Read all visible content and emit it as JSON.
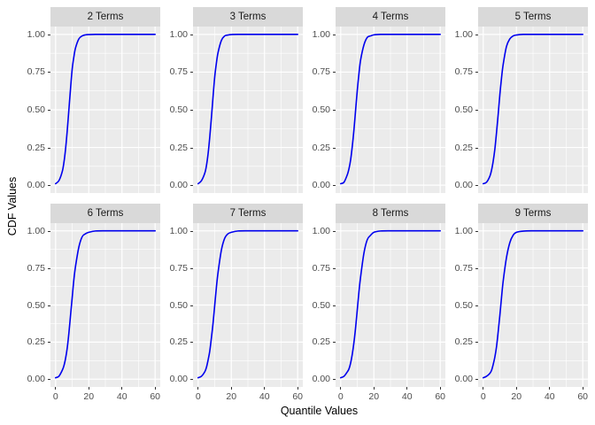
{
  "chart_data": {
    "type": "line",
    "title": "",
    "xlabel": "Quantile Values",
    "ylabel": "CDF Values",
    "legend": "none",
    "grid": true,
    "facet_layout": {
      "rows": 2,
      "cols": 4
    },
    "x_ticks": [
      0,
      20,
      40,
      60
    ],
    "x_tick_labels": [
      "0",
      "20",
      "40",
      "60"
    ],
    "y_ticks": [
      0,
      0.25,
      0.5,
      0.75,
      1
    ],
    "y_tick_labels": [
      "0.00",
      "0.25",
      "0.50",
      "0.75",
      "1.00"
    ],
    "x_minor_ticks": [
      10,
      30,
      50
    ],
    "y_minor_ticks": [
      0.125,
      0.375,
      0.625,
      0.875
    ],
    "x_range": [
      -3.1,
      63.1
    ],
    "y_range": [
      -0.052,
      1.052
    ],
    "colors": {
      "line": "#0000EE",
      "panel_bg": "#EBEBEB",
      "strip_bg": "#D9D9D9",
      "grid_major": "#FFFFFF",
      "grid_minor": "#FFFFFF",
      "tick_text": "#4D4D4D",
      "strip_text": "#1A1A1A",
      "axis_title": "#000000",
      "tick_mark": "#333333"
    },
    "facets": [
      {
        "label": "2 Terms",
        "points": [
          [
            0,
            0.01
          ],
          [
            2,
            0.03
          ],
          [
            4,
            0.09
          ],
          [
            5,
            0.15
          ],
          [
            6,
            0.24
          ],
          [
            7,
            0.36
          ],
          [
            8,
            0.5
          ],
          [
            9,
            0.64
          ],
          [
            10,
            0.77
          ],
          [
            11,
            0.85
          ],
          [
            12,
            0.91
          ],
          [
            14,
            0.97
          ],
          [
            16,
            0.99
          ],
          [
            18,
            0.997
          ],
          [
            20,
            0.999
          ],
          [
            24,
            1
          ],
          [
            30,
            1
          ],
          [
            40,
            1
          ],
          [
            50,
            1
          ],
          [
            60,
            1
          ]
        ]
      },
      {
        "label": "3 Terms",
        "points": [
          [
            0,
            0.01
          ],
          [
            2,
            0.03
          ],
          [
            4,
            0.08
          ],
          [
            5,
            0.13
          ],
          [
            6,
            0.21
          ],
          [
            7,
            0.32
          ],
          [
            8,
            0.45
          ],
          [
            9,
            0.59
          ],
          [
            10,
            0.72
          ],
          [
            11,
            0.81
          ],
          [
            12,
            0.88
          ],
          [
            14,
            0.96
          ],
          [
            16,
            0.99
          ],
          [
            18,
            0.996
          ],
          [
            20,
            0.999
          ],
          [
            24,
            1
          ],
          [
            30,
            1
          ],
          [
            40,
            1
          ],
          [
            50,
            1
          ],
          [
            60,
            1
          ]
        ]
      },
      {
        "label": "4 Terms",
        "points": [
          [
            0,
            0.01
          ],
          [
            2,
            0.02
          ],
          [
            4,
            0.07
          ],
          [
            5,
            0.11
          ],
          [
            6,
            0.17
          ],
          [
            7,
            0.26
          ],
          [
            8,
            0.37
          ],
          [
            9,
            0.5
          ],
          [
            10,
            0.63
          ],
          [
            11,
            0.74
          ],
          [
            12,
            0.83
          ],
          [
            14,
            0.93
          ],
          [
            16,
            0.98
          ],
          [
            18,
            0.99
          ],
          [
            20,
            0.997
          ],
          [
            24,
            1
          ],
          [
            30,
            1
          ],
          [
            40,
            1
          ],
          [
            50,
            1
          ],
          [
            60,
            1
          ]
        ]
      },
      {
        "label": "5 Terms",
        "points": [
          [
            0,
            0.01
          ],
          [
            2,
            0.02
          ],
          [
            4,
            0.06
          ],
          [
            5,
            0.1
          ],
          [
            6,
            0.16
          ],
          [
            7,
            0.24
          ],
          [
            8,
            0.35
          ],
          [
            9,
            0.47
          ],
          [
            10,
            0.6
          ],
          [
            11,
            0.71
          ],
          [
            12,
            0.8
          ],
          [
            14,
            0.92
          ],
          [
            16,
            0.97
          ],
          [
            18,
            0.99
          ],
          [
            20,
            0.996
          ],
          [
            24,
            1
          ],
          [
            30,
            1
          ],
          [
            40,
            1
          ],
          [
            50,
            1
          ],
          [
            60,
            1
          ]
        ]
      },
      {
        "label": "6 Terms",
        "points": [
          [
            0,
            0.01
          ],
          [
            2,
            0.02
          ],
          [
            4,
            0.06
          ],
          [
            5,
            0.09
          ],
          [
            6,
            0.14
          ],
          [
            7,
            0.21
          ],
          [
            8,
            0.31
          ],
          [
            9,
            0.43
          ],
          [
            10,
            0.55
          ],
          [
            11,
            0.67
          ],
          [
            12,
            0.76
          ],
          [
            14,
            0.89
          ],
          [
            16,
            0.96
          ],
          [
            18,
            0.98
          ],
          [
            20,
            0.99
          ],
          [
            24,
            0.999
          ],
          [
            30,
            1
          ],
          [
            40,
            1
          ],
          [
            50,
            1
          ],
          [
            60,
            1
          ]
        ]
      },
      {
        "label": "7 Terms",
        "points": [
          [
            0,
            0.01
          ],
          [
            2,
            0.02
          ],
          [
            4,
            0.05
          ],
          [
            5,
            0.08
          ],
          [
            6,
            0.13
          ],
          [
            7,
            0.19
          ],
          [
            8,
            0.28
          ],
          [
            9,
            0.38
          ],
          [
            10,
            0.5
          ],
          [
            11,
            0.62
          ],
          [
            12,
            0.72
          ],
          [
            14,
            0.87
          ],
          [
            16,
            0.95
          ],
          [
            18,
            0.98
          ],
          [
            20,
            0.99
          ],
          [
            24,
            0.999
          ],
          [
            30,
            1
          ],
          [
            40,
            1
          ],
          [
            50,
            1
          ],
          [
            60,
            1
          ]
        ]
      },
      {
        "label": "8 Terms",
        "points": [
          [
            0,
            0.01
          ],
          [
            2,
            0.02
          ],
          [
            4,
            0.05
          ],
          [
            5,
            0.07
          ],
          [
            6,
            0.11
          ],
          [
            7,
            0.17
          ],
          [
            8,
            0.25
          ],
          [
            9,
            0.35
          ],
          [
            10,
            0.47
          ],
          [
            11,
            0.59
          ],
          [
            12,
            0.69
          ],
          [
            14,
            0.85
          ],
          [
            16,
            0.94
          ],
          [
            18,
            0.97
          ],
          [
            20,
            0.99
          ],
          [
            24,
            0.999
          ],
          [
            30,
            1
          ],
          [
            40,
            1
          ],
          [
            50,
            1
          ],
          [
            60,
            1
          ]
        ]
      },
      {
        "label": "9 Terms",
        "points": [
          [
            0,
            0.01
          ],
          [
            2,
            0.02
          ],
          [
            4,
            0.04
          ],
          [
            5,
            0.06
          ],
          [
            6,
            0.1
          ],
          [
            7,
            0.15
          ],
          [
            8,
            0.22
          ],
          [
            9,
            0.32
          ],
          [
            10,
            0.43
          ],
          [
            11,
            0.55
          ],
          [
            12,
            0.66
          ],
          [
            14,
            0.82
          ],
          [
            16,
            0.92
          ],
          [
            18,
            0.97
          ],
          [
            20,
            0.99
          ],
          [
            24,
            0.998
          ],
          [
            30,
            1
          ],
          [
            40,
            1
          ],
          [
            50,
            1
          ],
          [
            60,
            1
          ]
        ]
      }
    ]
  }
}
